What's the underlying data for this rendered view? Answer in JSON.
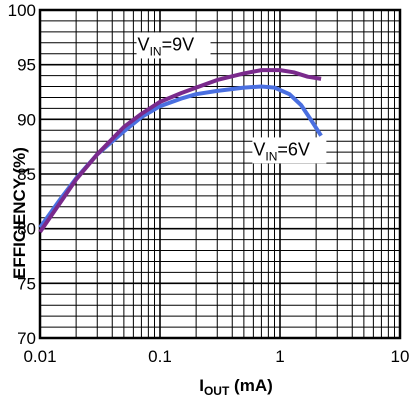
{
  "chart_data": {
    "type": "line",
    "title": "",
    "xlabel": {
      "main": "I",
      "sub": "OUT",
      "rest": " (mA)"
    },
    "ylabel": "EFFICIENCY (%)",
    "xscale": "log",
    "xlim": [
      0.01,
      10
    ],
    "ylim": [
      70,
      100
    ],
    "grid": true,
    "x_ticks": [
      {
        "value": 0.01,
        "label": "0.01"
      },
      {
        "value": 0.1,
        "label": "0.1"
      },
      {
        "value": 1,
        "label": "1"
      },
      {
        "value": 10,
        "label": "10"
      }
    ],
    "y_ticks": [
      {
        "value": 70,
        "label": "70"
      },
      {
        "value": 75,
        "label": "75"
      },
      {
        "value": 80,
        "label": "80"
      },
      {
        "value": 85,
        "label": "85"
      },
      {
        "value": 90,
        "label": "90"
      },
      {
        "value": 95,
        "label": "95"
      },
      {
        "value": 100,
        "label": "100"
      }
    ],
    "series": [
      {
        "label_main": "V",
        "label_sub": "IN",
        "label_rest": "=9V",
        "color": "#7a2a8c",
        "label_anchor": {
          "x": 0.065,
          "y": 96.3
        },
        "points": [
          [
            0.01,
            79.7
          ],
          [
            0.015,
            82.5
          ],
          [
            0.02,
            84.5
          ],
          [
            0.03,
            86.8
          ],
          [
            0.05,
            89.3
          ],
          [
            0.07,
            90.5
          ],
          [
            0.1,
            91.6
          ],
          [
            0.15,
            92.4
          ],
          [
            0.2,
            92.9
          ],
          [
            0.3,
            93.6
          ],
          [
            0.5,
            94.2
          ],
          [
            0.7,
            94.5
          ],
          [
            1.0,
            94.5
          ],
          [
            1.3,
            94.3
          ],
          [
            1.7,
            93.9
          ],
          [
            2.2,
            93.7
          ]
        ]
      },
      {
        "label_main": "V",
        "label_sub": "IN",
        "label_rest": "=6V",
        "color": "#4a6fe0",
        "label_anchor": {
          "x": 0.6,
          "y": 86.7
        },
        "points": [
          [
            0.01,
            80.1
          ],
          [
            0.015,
            82.8
          ],
          [
            0.02,
            84.6
          ],
          [
            0.03,
            86.8
          ],
          [
            0.05,
            88.9
          ],
          [
            0.07,
            90.2
          ],
          [
            0.1,
            91.2
          ],
          [
            0.15,
            91.9
          ],
          [
            0.2,
            92.3
          ],
          [
            0.3,
            92.6
          ],
          [
            0.5,
            92.9
          ],
          [
            0.7,
            93.0
          ],
          [
            0.9,
            92.9
          ],
          [
            1.2,
            92.3
          ],
          [
            1.5,
            91.3
          ],
          [
            1.8,
            90.0
          ],
          [
            2.2,
            88.5
          ]
        ]
      }
    ]
  }
}
